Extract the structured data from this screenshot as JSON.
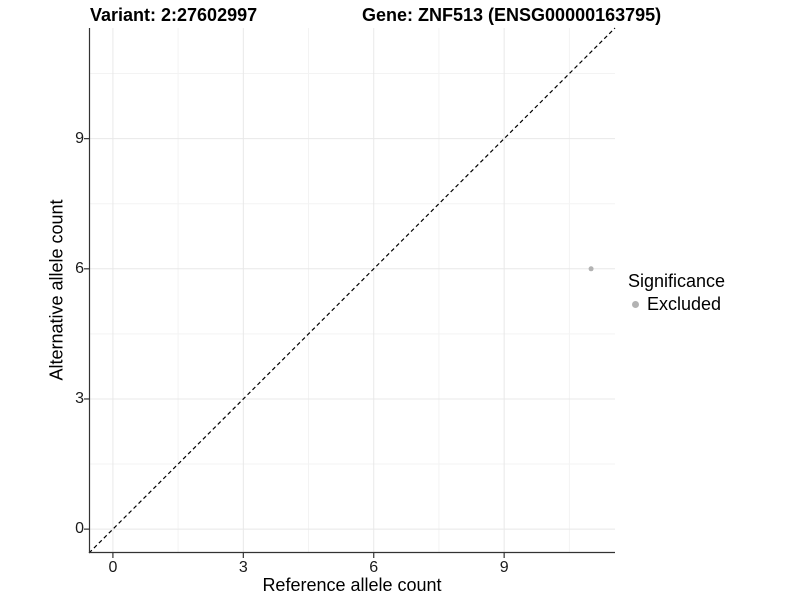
{
  "chart_data": {
    "type": "scatter",
    "title_variant": "Variant: 2:27602997",
    "title_gene": "Gene: ZNF513 (ENSG00000163795)",
    "xlabel": "Reference allele count",
    "ylabel": "Alternative allele count",
    "xlim": [
      -0.55,
      11.55
    ],
    "ylim": [
      -0.55,
      11.55
    ],
    "x_ticks": [
      0,
      3,
      6,
      9
    ],
    "y_ticks": [
      0,
      3,
      6,
      9
    ],
    "x_minor_ticks": [
      1.5,
      4.5,
      7.5,
      10.5
    ],
    "y_minor_ticks": [
      1.5,
      4.5,
      7.5,
      10.5
    ],
    "grid": true,
    "points": [
      {
        "x": 11,
        "y": 6,
        "significance": "Excluded",
        "color": "#b3b3b3",
        "radius": 2.5
      }
    ],
    "reference_line": {
      "type": "identity",
      "style": "dashed",
      "color": "#000000",
      "x1": -0.55,
      "y1": -0.55,
      "x2": 11.55,
      "y2": 11.55
    },
    "legend": {
      "title": "Significance",
      "position": "right",
      "entries": [
        {
          "label": "Excluded",
          "color": "#b3b3b3"
        }
      ]
    },
    "colors": {
      "grid_major": "#e8e8e8",
      "grid_minor": "#f3f3f3",
      "axis_line": "#333333",
      "tick_mark": "#333333",
      "tick_text": "#1a1a1a"
    }
  }
}
